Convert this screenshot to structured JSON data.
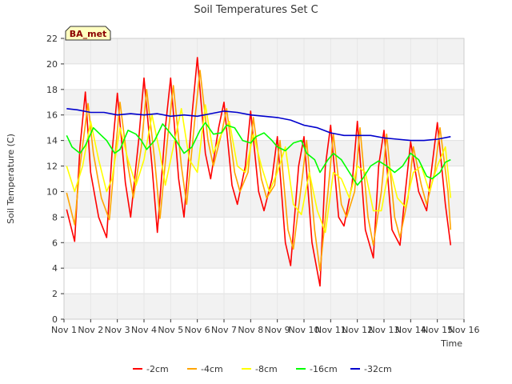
{
  "chart_data": {
    "type": "line",
    "title": "Soil Temperatures Set C",
    "xlabel": "Time",
    "ylabel": "Soil Temperature (C)",
    "badge": "BA_met",
    "xlim": [
      1,
      16
    ],
    "ylim": [
      0,
      22
    ],
    "x_ticks": [
      1,
      2,
      3,
      4,
      5,
      6,
      7,
      8,
      9,
      10,
      11,
      12,
      13,
      14,
      15,
      16
    ],
    "x_tick_labels": [
      "Nov 1",
      "Nov 2",
      "Nov 3",
      "Nov 4",
      "Nov 5",
      "Nov 6",
      "Nov 7",
      "Nov 8",
      "Nov 9",
      "Nov 10",
      "Nov 11",
      "Nov 12",
      "Nov 13",
      "Nov 14",
      "Nov 15",
      "Nov 16"
    ],
    "y_ticks": [
      0,
      2,
      4,
      6,
      8,
      10,
      12,
      14,
      16,
      18,
      20,
      22
    ],
    "grid": true,
    "legend_position": "bottom-center",
    "series": [
      {
        "name": "-2cm",
        "color": "#ff0000",
        "x": [
          1.1,
          1.4,
          1.6,
          1.8,
          2.0,
          2.3,
          2.6,
          2.8,
          3.0,
          3.3,
          3.5,
          3.8,
          4.0,
          4.3,
          4.5,
          4.8,
          5.0,
          5.3,
          5.5,
          5.8,
          6.0,
          6.3,
          6.5,
          6.8,
          7.0,
          7.3,
          7.5,
          7.8,
          8.0,
          8.3,
          8.5,
          8.8,
          9.0,
          9.3,
          9.5,
          9.8,
          10.0,
          10.3,
          10.6,
          10.8,
          11.0,
          11.3,
          11.5,
          11.8,
          12.0,
          12.3,
          12.6,
          12.8,
          13.0,
          13.3,
          13.6,
          13.8,
          14.0,
          14.3,
          14.6,
          14.8,
          15.0,
          15.3,
          15.5
        ],
        "y": [
          8.6,
          6.1,
          13.5,
          17.8,
          11.5,
          8.0,
          6.4,
          13.0,
          17.7,
          10.7,
          8.0,
          14.0,
          18.9,
          12.0,
          6.8,
          15.0,
          18.9,
          11.0,
          8.0,
          16.0,
          20.5,
          13.0,
          11.0,
          15.0,
          17.0,
          10.5,
          9.0,
          12.0,
          16.3,
          10.0,
          8.5,
          11.0,
          14.3,
          6.0,
          4.2,
          12.0,
          14.3,
          6.0,
          2.6,
          12.0,
          15.2,
          8.0,
          7.3,
          10.5,
          15.5,
          7.0,
          4.8,
          12.0,
          14.8,
          7.0,
          5.8,
          10.0,
          13.9,
          10.0,
          8.5,
          12.0,
          15.4,
          9.0,
          5.8
        ]
      },
      {
        "name": "-4cm",
        "color": "#ffa500",
        "x": [
          1.1,
          1.4,
          1.6,
          1.9,
          2.1,
          2.4,
          2.7,
          2.9,
          3.1,
          3.4,
          3.6,
          3.9,
          4.1,
          4.4,
          4.6,
          4.9,
          5.1,
          5.4,
          5.6,
          5.9,
          6.1,
          6.4,
          6.6,
          6.9,
          7.1,
          7.4,
          7.6,
          7.9,
          8.1,
          8.4,
          8.6,
          8.9,
          9.1,
          9.4,
          9.6,
          9.9,
          10.1,
          10.4,
          10.6,
          10.9,
          11.1,
          11.4,
          11.6,
          11.9,
          12.1,
          12.4,
          12.6,
          12.9,
          13.1,
          13.4,
          13.6,
          13.9,
          14.1,
          14.4,
          14.6,
          14.9,
          15.1,
          15.4,
          15.5
        ],
        "y": [
          9.9,
          7.4,
          12.0,
          16.9,
          13.0,
          9.5,
          7.8,
          12.5,
          17.0,
          12.0,
          9.5,
          13.5,
          18.0,
          12.5,
          7.9,
          14.5,
          18.3,
          12.0,
          9.0,
          15.5,
          19.5,
          14.0,
          12.0,
          14.5,
          16.5,
          11.5,
          10.0,
          11.5,
          15.8,
          11.0,
          9.5,
          10.5,
          14.0,
          7.0,
          5.5,
          10.5,
          14.0,
          7.0,
          3.8,
          10.0,
          14.5,
          9.0,
          8.0,
          10.0,
          15.0,
          8.0,
          5.8,
          10.0,
          14.5,
          8.0,
          6.4,
          9.5,
          13.5,
          10.5,
          9.0,
          11.5,
          15.0,
          10.0,
          7.0
        ]
      },
      {
        "name": "-8cm",
        "color": "#ffff00",
        "x": [
          1.1,
          1.4,
          1.7,
          2.0,
          2.3,
          2.6,
          2.8,
          3.1,
          3.4,
          3.7,
          4.0,
          4.3,
          4.6,
          4.8,
          5.1,
          5.4,
          5.7,
          6.0,
          6.3,
          6.6,
          6.9,
          7.2,
          7.5,
          7.8,
          8.1,
          8.4,
          8.7,
          9.0,
          9.3,
          9.6,
          9.9,
          10.2,
          10.5,
          10.8,
          11.1,
          11.4,
          11.7,
          12.0,
          12.3,
          12.6,
          12.9,
          13.2,
          13.5,
          13.8,
          14.1,
          14.4,
          14.7,
          15.0,
          15.3,
          15.5
        ],
        "y": [
          12.0,
          10.0,
          12.0,
          15.5,
          12.5,
          10.0,
          11.0,
          15.0,
          12.5,
          10.5,
          12.5,
          16.0,
          13.0,
          10.5,
          13.5,
          16.5,
          12.5,
          11.5,
          16.8,
          13.0,
          14.5,
          15.5,
          12.0,
          11.5,
          14.5,
          12.0,
          10.0,
          11.5,
          13.5,
          9.0,
          8.2,
          11.5,
          8.5,
          6.8,
          11.5,
          11.0,
          9.5,
          12.0,
          11.5,
          8.5,
          8.5,
          12.0,
          9.5,
          8.8,
          11.5,
          12.0,
          10.0,
          12.0,
          13.5,
          9.5
        ]
      },
      {
        "name": "-16cm",
        "color": "#00ff00",
        "x": [
          1.1,
          1.3,
          1.6,
          1.8,
          2.1,
          2.3,
          2.6,
          2.9,
          3.1,
          3.4,
          3.7,
          3.9,
          4.1,
          4.4,
          4.7,
          4.9,
          5.2,
          5.5,
          5.8,
          6.1,
          6.3,
          6.6,
          6.9,
          7.1,
          7.4,
          7.7,
          8.0,
          8.2,
          8.5,
          8.8,
          9.0,
          9.3,
          9.6,
          9.9,
          10.1,
          10.4,
          10.6,
          10.9,
          11.1,
          11.4,
          11.7,
          12.0,
          12.2,
          12.5,
          12.8,
          13.1,
          13.4,
          13.7,
          14.0,
          14.3,
          14.6,
          14.8,
          15.1,
          15.3,
          15.5
        ],
        "y": [
          14.4,
          13.5,
          13.0,
          13.6,
          15.0,
          14.6,
          14.0,
          13.0,
          13.3,
          14.8,
          14.5,
          14.0,
          13.3,
          14.0,
          15.3,
          14.8,
          14.0,
          13.0,
          13.5,
          14.8,
          15.4,
          14.5,
          14.6,
          15.2,
          15.0,
          14.0,
          13.8,
          14.3,
          14.6,
          14.0,
          13.5,
          13.2,
          13.8,
          14.0,
          13.0,
          12.5,
          11.5,
          12.5,
          13.0,
          12.5,
          11.5,
          10.5,
          11.0,
          12.0,
          12.4,
          12.0,
          11.5,
          12.0,
          13.0,
          12.5,
          11.2,
          11.0,
          11.5,
          12.3,
          12.5
        ]
      },
      {
        "name": "-32cm",
        "color": "#0000cd",
        "x": [
          1.1,
          1.5,
          2.0,
          2.5,
          3.0,
          3.5,
          4.0,
          4.5,
          5.0,
          5.5,
          6.0,
          6.5,
          7.0,
          7.5,
          8.0,
          8.5,
          9.0,
          9.5,
          10.0,
          10.5,
          11.0,
          11.5,
          12.0,
          12.5,
          13.0,
          13.5,
          14.0,
          14.5,
          15.0,
          15.5
        ],
        "y": [
          16.5,
          16.4,
          16.2,
          16.2,
          16.0,
          16.1,
          16.0,
          16.1,
          15.9,
          16.0,
          15.9,
          16.1,
          16.3,
          16.2,
          16.0,
          15.9,
          15.8,
          15.6,
          15.2,
          15.0,
          14.6,
          14.4,
          14.4,
          14.4,
          14.2,
          14.1,
          14.0,
          14.0,
          14.1,
          14.3
        ]
      }
    ]
  }
}
